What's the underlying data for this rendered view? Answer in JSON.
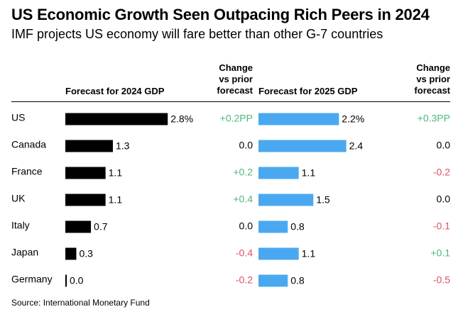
{
  "title": "US Economic Growth Seen Outpacing Rich Peers in 2024",
  "subtitle": "IMF projects US economy will fare better than other G-7 countries",
  "source": "Source: International Monetary Fund",
  "headers": {
    "forecast_2024": "Forecast for 2024 GDP",
    "forecast_2025": "Forecast for 2025 GDP",
    "change_lines": [
      "Change",
      "vs prior",
      "forecast"
    ]
  },
  "colors": {
    "bar_2024": "#000000",
    "bar_2025": "#4aa8f0",
    "positive": "#4cb87a",
    "negative": "#e0505e",
    "neutral": "#000000"
  },
  "chart_data": {
    "type": "bar",
    "orientation": "horizontal",
    "categories": [
      "US",
      "Canada",
      "France",
      "UK",
      "Italy",
      "Japan",
      "Germany"
    ],
    "series": [
      {
        "name": "Forecast for 2024 GDP",
        "values": [
          2.8,
          1.3,
          1.1,
          1.1,
          0.7,
          0.3,
          0.0
        ],
        "labels": [
          "2.8%",
          "1.3",
          "1.1",
          "1.1",
          "0.7",
          "0.3",
          "0.0"
        ]
      },
      {
        "name": "Forecast for 2025 GDP",
        "values": [
          2.2,
          2.4,
          1.1,
          1.5,
          0.8,
          1.1,
          0.8
        ],
        "labels": [
          "2.2%",
          "2.4",
          "1.1",
          "1.5",
          "0.8",
          "1.1",
          "0.8"
        ]
      }
    ],
    "change_2024": {
      "values": [
        0.2,
        0.0,
        0.2,
        0.4,
        0.0,
        -0.4,
        -0.2
      ],
      "labels": [
        "+0.2PP",
        "0.0",
        "+0.2",
        "+0.4",
        "0.0",
        "-0.4",
        "-0.2"
      ]
    },
    "change_2025": {
      "values": [
        0.3,
        0.0,
        -0.2,
        0.0,
        -0.1,
        0.1,
        -0.5
      ],
      "labels": [
        "+0.3PP",
        "0.0",
        "-0.2",
        "0.0",
        "-0.1",
        "+0.1",
        "-0.5"
      ]
    }
  }
}
